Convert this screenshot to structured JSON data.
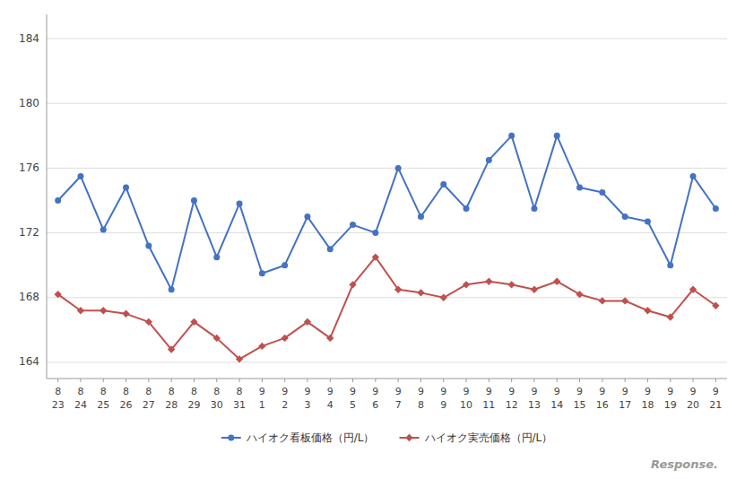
{
  "chart_data": {
    "type": "line",
    "categories": [
      [
        "8",
        "23"
      ],
      [
        "8",
        "24"
      ],
      [
        "8",
        "25"
      ],
      [
        "8",
        "26"
      ],
      [
        "8",
        "27"
      ],
      [
        "8",
        "28"
      ],
      [
        "8",
        "29"
      ],
      [
        "8",
        "30"
      ],
      [
        "8",
        "31"
      ],
      [
        "9",
        "1"
      ],
      [
        "9",
        "2"
      ],
      [
        "9",
        "3"
      ],
      [
        "9",
        "4"
      ],
      [
        "9",
        "5"
      ],
      [
        "9",
        "6"
      ],
      [
        "9",
        "7"
      ],
      [
        "9",
        "8"
      ],
      [
        "9",
        "9"
      ],
      [
        "9",
        "10"
      ],
      [
        "9",
        "11"
      ],
      [
        "9",
        "12"
      ],
      [
        "9",
        "13"
      ],
      [
        "9",
        "14"
      ],
      [
        "9",
        "15"
      ],
      [
        "9",
        "16"
      ],
      [
        "9",
        "17"
      ],
      [
        "9",
        "18"
      ],
      [
        "9",
        "19"
      ],
      [
        "9",
        "20"
      ],
      [
        "9",
        "21"
      ]
    ],
    "series": [
      {
        "name": "ハイオク看板価格（円/L）",
        "color": "#4472C4",
        "marker": "circle",
        "values": [
          174.0,
          175.5,
          172.2,
          174.8,
          171.2,
          168.5,
          174.0,
          170.5,
          173.8,
          169.5,
          170.0,
          173.0,
          171.0,
          172.5,
          172.0,
          176.0,
          173.0,
          175.0,
          173.5,
          176.5,
          178.0,
          173.5,
          178.0,
          174.8,
          174.5,
          173.0,
          172.7,
          170.0,
          175.5,
          173.5
        ]
      },
      {
        "name": "ハイオク実売価格（円/L）",
        "color": "#C0504D",
        "marker": "diamond",
        "values": [
          168.2,
          167.2,
          167.2,
          167.0,
          166.5,
          164.8,
          166.5,
          165.5,
          164.2,
          165.0,
          165.5,
          166.5,
          165.5,
          168.8,
          170.5,
          168.5,
          168.3,
          168.0,
          168.8,
          169.0,
          168.8,
          168.5,
          169.0,
          168.2,
          167.8,
          167.8,
          167.2,
          166.8,
          168.5,
          167.5
        ]
      }
    ],
    "ylim": [
      163.0,
      185.5
    ],
    "yticks": [
      164,
      168,
      172,
      176,
      180,
      184
    ],
    "grid": true,
    "legend": "bottom",
    "annotations": [
      "Response."
    ]
  }
}
